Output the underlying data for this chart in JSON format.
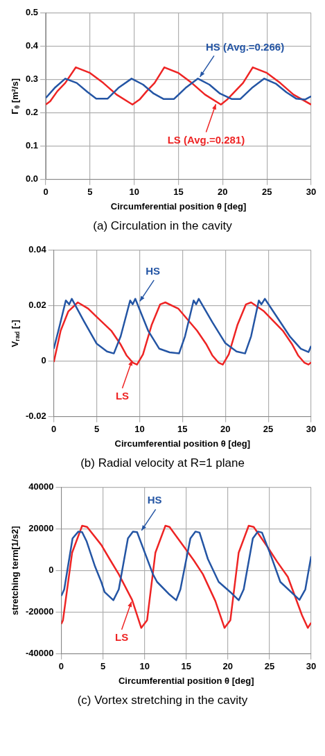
{
  "chart_data": [
    {
      "type": "line",
      "title": "(a)   Circulation in the cavity",
      "xlabel": "Circumferential position θ [deg]",
      "ylabel": "Γ$_{θ}$ [m²/s]",
      "xlim": [
        0,
        30
      ],
      "xticks": [
        0,
        5,
        10,
        15,
        20,
        25,
        30
      ],
      "ylim": [
        0,
        0.5
      ],
      "yticks": [
        {
          "value": 0,
          "label": "0.0"
        },
        {
          "value": 0.1,
          "label": "0.1"
        },
        {
          "value": 0.2,
          "label": "0.2"
        },
        {
          "value": 0.3,
          "label": "0.3"
        },
        {
          "value": 0.4,
          "label": "0.4"
        },
        {
          "value": 0.5,
          "label": "0.5"
        }
      ],
      "grid": true,
      "series": [
        {
          "color": "#2455a4",
          "x": [
            0,
            1,
            2.2,
            3.5,
            4.7,
            5.7,
            7,
            8.2,
            9.7,
            11,
            12.2,
            13.3,
            14.5,
            15.8,
            17.2,
            18.5,
            19.7,
            21,
            22,
            23.3,
            24.7,
            26,
            27.2,
            28.3,
            29.3,
            30
          ],
          "values": [
            0.245,
            0.275,
            0.303,
            0.29,
            0.263,
            0.243,
            0.243,
            0.275,
            0.303,
            0.285,
            0.258,
            0.242,
            0.242,
            0.275,
            0.303,
            0.285,
            0.258,
            0.242,
            0.242,
            0.275,
            0.303,
            0.288,
            0.262,
            0.243,
            0.24,
            0.25
          ]
        },
        {
          "color": "#ee2424",
          "x": [
            0,
            0.5,
            1.3,
            2.2,
            3.4,
            5,
            6.5,
            8,
            9.8,
            10.6,
            11.4,
            12.3,
            13.4,
            15,
            16.5,
            18,
            19.8,
            20.5,
            21.4,
            22.3,
            23.4,
            25,
            26.5,
            28,
            30
          ],
          "values": [
            0.225,
            0.235,
            0.265,
            0.29,
            0.337,
            0.32,
            0.29,
            0.255,
            0.225,
            0.24,
            0.265,
            0.29,
            0.337,
            0.32,
            0.29,
            0.255,
            0.225,
            0.24,
            0.265,
            0.29,
            0.337,
            0.32,
            0.29,
            0.255,
            0.225
          ]
        }
      ],
      "annotations": [
        {
          "text": "HS (Avg.=0.266)",
          "x": 17.3,
          "y": 0.303
        },
        {
          "text": "LS (Avg.=0.281)",
          "x": 19.3,
          "y": 0.232
        }
      ]
    },
    {
      "type": "line",
      "title": "(b)   Radial velocity at R=1 plane",
      "xlabel": "Circumferential position θ [deg]",
      "ylabel": "V$_{rad}$ [-]",
      "xlim": [
        0,
        30
      ],
      "xticks": [
        0,
        5,
        10,
        15,
        20,
        25,
        30
      ],
      "ylim": [
        -0.02,
        0.04
      ],
      "yticks": [
        -0.02,
        0,
        0.02,
        0.04
      ],
      "grid": true,
      "series": [
        {
          "color": "#2455a4",
          "x": [
            0,
            0.7,
            1.4,
            1.8,
            2.1,
            3.5,
            5,
            6.2,
            7,
            7.8,
            8.9,
            9.2,
            9.5,
            11,
            12.3,
            13.5,
            14.6,
            15.3,
            16.3,
            16.6,
            16.9,
            18.5,
            20,
            21.3,
            22.3,
            23,
            23.9,
            24.2,
            24.6,
            26,
            27.5,
            28.8,
            29.7,
            30
          ],
          "values": [
            0.0045,
            0.013,
            0.0219,
            0.0205,
            0.0225,
            0.0145,
            0.0063,
            0.0035,
            0.0028,
            0.009,
            0.0219,
            0.0205,
            0.0225,
            0.011,
            0.0045,
            0.0032,
            0.0028,
            0.009,
            0.0219,
            0.0205,
            0.0225,
            0.014,
            0.0065,
            0.0035,
            0.0028,
            0.009,
            0.0219,
            0.0205,
            0.0225,
            0.016,
            0.009,
            0.0045,
            0.0033,
            0.0055
          ]
        },
        {
          "color": "#ee2424",
          "x": [
            0,
            0.8,
            1.7,
            2.8,
            4,
            5,
            6.7,
            7.8,
            8.5,
            9.2,
            9.7,
            10.4,
            11.4,
            12.4,
            13,
            14.5,
            16.7,
            17.8,
            18.5,
            19.2,
            19.7,
            20.4,
            21.4,
            22.4,
            23,
            24.5,
            26.7,
            27.8,
            28.5,
            29.2,
            29.7,
            30
          ],
          "values": [
            -0.0003,
            0.011,
            0.018,
            0.0212,
            0.019,
            0.016,
            0.011,
            0.006,
            0.002,
            -0.0005,
            -0.0012,
            0.0025,
            0.013,
            0.0205,
            0.0212,
            0.019,
            0.011,
            0.006,
            0.002,
            -0.0005,
            -0.0012,
            0.0025,
            0.013,
            0.0205,
            0.0212,
            0.018,
            0.011,
            0.006,
            0.002,
            -0.0005,
            -0.0012,
            -0.0004
          ]
        }
      ],
      "annotations": [
        {
          "text": "HS",
          "x": 9.9,
          "y": 0.021
        },
        {
          "text": "LS",
          "x": 9.2,
          "y": 0.001
        }
      ]
    },
    {
      "type": "line",
      "title": "(c)   Vortex stretching in the cavity",
      "xlabel": "Circumferential position θ [deg]",
      "ylabel": "stretching term[1/s2]",
      "xlim": [
        0,
        30
      ],
      "xticks": [
        0,
        5,
        10,
        15,
        20,
        25,
        30
      ],
      "ylim": [
        -40000,
        40000
      ],
      "yticks": [
        -40000,
        -20000,
        0,
        20000,
        40000
      ],
      "grid": true,
      "series": [
        {
          "color": "#2455a4",
          "x": [
            0,
            0.35,
            1.35,
            2.05,
            2.5,
            3.05,
            4.05,
            4.8,
            5.2,
            6.25,
            6.9,
            8,
            8.6,
            9.1,
            11,
            11.5,
            13,
            13.8,
            14.3,
            15.5,
            16.1,
            16.6,
            17.6,
            18.9,
            20.3,
            21.3,
            21.9,
            23,
            23.6,
            24.1,
            25.2,
            26.3,
            28.6,
            29.3,
            30
          ],
          "values": [
            -12100,
            -9000,
            15500,
            18800,
            18500,
            14000,
            2000,
            -5400,
            -10300,
            -14200,
            -9000,
            15500,
            18800,
            18500,
            -1700,
            -5400,
            -11500,
            -14200,
            -9000,
            15500,
            18800,
            18300,
            5600,
            -5400,
            -10300,
            -14200,
            -9000,
            15500,
            18800,
            18300,
            6900,
            -5400,
            -14000,
            -9000,
            6900
          ]
        },
        {
          "color": "#ee2424",
          "x": [
            0,
            0.2,
            1.3,
            2.5,
            3.1,
            4.8,
            5.8,
            6.9,
            8.5,
            9.6,
            10.3,
            11.3,
            12.5,
            13,
            15,
            15.9,
            17,
            18.5,
            19.6,
            20.3,
            21.3,
            22.5,
            23.1,
            24.8,
            25.9,
            27.2,
            28.9,
            29.6,
            30
          ],
          "values": [
            -25600,
            -23800,
            8700,
            21600,
            21000,
            12400,
            5600,
            -1700,
            -14000,
            -27500,
            -23800,
            8700,
            21600,
            21000,
            10000,
            5000,
            -1700,
            -14600,
            -27500,
            -23800,
            8700,
            21600,
            21000,
            11200,
            4400,
            -3000,
            -21400,
            -27500,
            -25000
          ]
        }
      ],
      "annotations": [
        {
          "text": "HS",
          "x": 9.5,
          "y": 18500
        },
        {
          "text": "LS",
          "x": 8.5,
          "y": -14000
        }
      ]
    }
  ]
}
